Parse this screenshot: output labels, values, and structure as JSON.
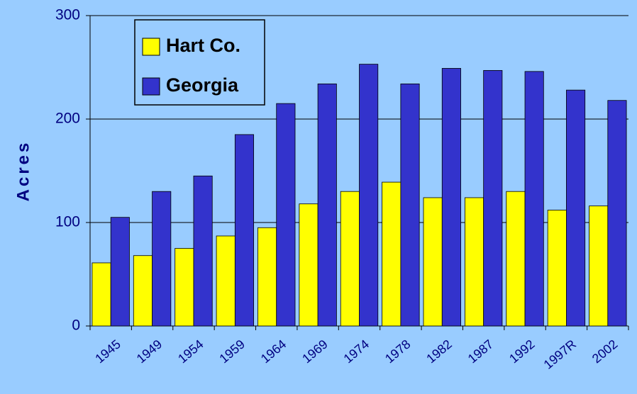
{
  "chart_data": {
    "type": "bar",
    "y_label": "Acres",
    "categories": [
      "1945",
      "1949",
      "1954",
      "1959",
      "1964",
      "1969",
      "1974",
      "1978",
      "1982",
      "1987",
      "1992",
      "1997R",
      "2002"
    ],
    "series": [
      {
        "name": "Hart Co.",
        "color": "#ffff00",
        "values": [
          61,
          68,
          75,
          87,
          95,
          118,
          130,
          139,
          124,
          124,
          130,
          112,
          116
        ]
      },
      {
        "name": "Georgia",
        "color": "#3333cc",
        "values": [
          105,
          130,
          145,
          185,
          215,
          234,
          253,
          234,
          249,
          247,
          246,
          228,
          218
        ]
      }
    ],
    "ylim": [
      0,
      300
    ],
    "yticks": [
      0,
      100,
      200,
      300
    ],
    "grid": true
  }
}
